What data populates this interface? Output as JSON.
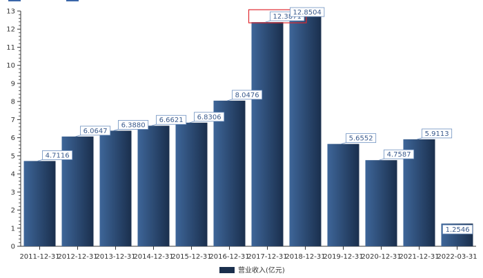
{
  "chart_data": {
    "type": "bar",
    "categories": [
      "2011-12-31",
      "2012-12-31",
      "2013-12-31",
      "2014-12-31",
      "2015-12-31",
      "2016-12-31",
      "2017-12-31",
      "2018-12-31",
      "2019-12-31",
      "2020-12-31",
      "2021-12-31",
      "2022-03-31"
    ],
    "series": [
      {
        "name": "营业收入(亿元)",
        "values": [
          4.7116,
          6.0647,
          6.388,
          6.6621,
          6.8306,
          8.0476,
          12.3871,
          12.8504,
          5.6552,
          4.7587,
          5.9113,
          1.2546
        ],
        "labels": [
          "4.7116",
          "6.0647",
          "6.3880",
          "6.6621",
          "6.8306",
          "8.0476",
          "12.3871",
          "12.8504",
          "5.6552",
          "4.7587",
          "5.9113",
          "1.2546"
        ]
      }
    ],
    "ylim": [
      0,
      13
    ],
    "yticks": [
      "0",
      "1",
      "2",
      "3",
      "4",
      "5",
      "6",
      "7",
      "8",
      "9",
      "10",
      "11",
      "12",
      "13"
    ],
    "grid": false,
    "legend": "bottom-center",
    "highlighted_category": "2017-12-31",
    "colors": {
      "bar_light": "#3e6699",
      "bar_dark": "#1a2f4d",
      "label_text": "#3a5a8c",
      "label_border": "#6c8fbf",
      "highlight": "#e0282e",
      "axis": "#333333"
    }
  }
}
